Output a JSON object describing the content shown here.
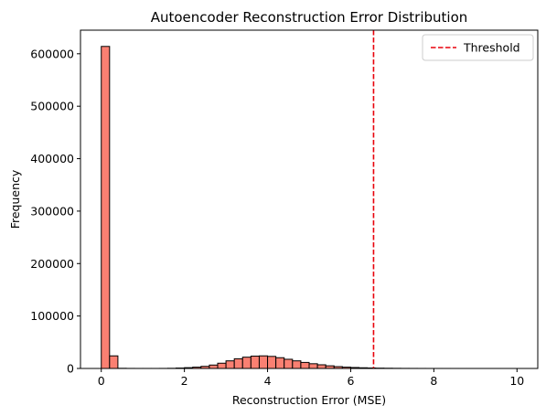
{
  "chart_data": {
    "type": "bar",
    "title": "Autoencoder Reconstruction Error Distribution",
    "xlabel": "Reconstruction Error (MSE)",
    "ylabel": "Frequency",
    "xlim": [
      -0.5,
      10.5
    ],
    "ylim": [
      0,
      645000
    ],
    "xticks": [
      0,
      2,
      4,
      6,
      8,
      10
    ],
    "yticks": [
      0,
      100000,
      200000,
      300000,
      400000,
      500000,
      600000
    ],
    "grid": false,
    "bin_edges": [
      0.0,
      0.2,
      0.4,
      0.6,
      0.8,
      1.0,
      1.2,
      1.4,
      1.6,
      1.8,
      2.0,
      2.2,
      2.4,
      2.6,
      2.8,
      3.0,
      3.2,
      3.4,
      3.6,
      3.8,
      4.0,
      4.2,
      4.4,
      4.6,
      4.8,
      5.0,
      5.2,
      5.4,
      5.6,
      5.8,
      6.0,
      6.2,
      6.4,
      6.6,
      6.8,
      7.0,
      7.2,
      7.4,
      7.6,
      7.8,
      8.0,
      8.2,
      8.4,
      8.6,
      8.8,
      9.0,
      9.2,
      9.4,
      9.6,
      9.8,
      10.0
    ],
    "counts": [
      614000,
      24000,
      300,
      100,
      50,
      50,
      50,
      100,
      300,
      800,
      1500,
      2500,
      4000,
      6500,
      10000,
      14500,
      18500,
      21500,
      23500,
      24000,
      23000,
      20500,
      17500,
      14500,
      11500,
      9000,
      7000,
      5000,
      3500,
      2500,
      1800,
      1300,
      900,
      600,
      400,
      250,
      150,
      100,
      60,
      40,
      30,
      20,
      15,
      10,
      8,
      6,
      5,
      4,
      3,
      2
    ],
    "bar_color": "#fa8072",
    "edge_color": "#000000",
    "threshold": {
      "label": "Threshold",
      "x": 6.55,
      "color": "#e8000b",
      "style": "dashed"
    },
    "legend": {
      "placement": "top-right",
      "entries": [
        "Threshold"
      ]
    }
  }
}
